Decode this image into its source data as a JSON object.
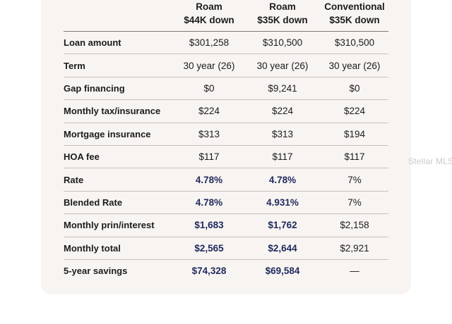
{
  "watermark": "Stellar MLS",
  "columns": [
    {
      "line1": "",
      "line2": ""
    },
    {
      "line1": "Roam",
      "line2": "$44K down"
    },
    {
      "line1": "Roam",
      "line2": "$35K down"
    },
    {
      "line1": "Conventional",
      "line2": "$35K down"
    }
  ],
  "rows": [
    {
      "label": "Loan amount",
      "values": [
        "$301,258",
        "$310,500",
        "$310,500"
      ],
      "highlight": [
        false,
        false,
        false
      ]
    },
    {
      "label": "Term",
      "values": [
        "30 year (26)",
        "30 year (26)",
        "30 year (26)"
      ],
      "highlight": [
        false,
        false,
        false
      ]
    },
    {
      "label": "Gap financing",
      "values": [
        "$0",
        "$9,241",
        "$0"
      ],
      "highlight": [
        false,
        false,
        false
      ]
    },
    {
      "label": "Monthly tax/insurance",
      "values": [
        "$224",
        "$224",
        "$224"
      ],
      "highlight": [
        false,
        false,
        false
      ]
    },
    {
      "label": "Mortgage insurance",
      "values": [
        "$313",
        "$313",
        "$194"
      ],
      "highlight": [
        false,
        false,
        false
      ]
    },
    {
      "label": "HOA fee",
      "values": [
        "$117",
        "$117",
        "$117"
      ],
      "highlight": [
        false,
        false,
        false
      ]
    },
    {
      "label": "Rate",
      "values": [
        "4.78%",
        "4.78%",
        "7%"
      ],
      "highlight": [
        true,
        true,
        false
      ]
    },
    {
      "label": "Blended Rate",
      "values": [
        "4.78%",
        "4.931%",
        "7%"
      ],
      "highlight": [
        true,
        true,
        false
      ]
    },
    {
      "label": "Monthly prin/interest",
      "values": [
        "$1,683",
        "$1,762",
        "$2,158"
      ],
      "highlight": [
        true,
        true,
        false
      ]
    },
    {
      "label": "Monthly total",
      "values": [
        "$2,565",
        "$2,644",
        "$2,921"
      ],
      "highlight": [
        true,
        true,
        false
      ]
    },
    {
      "label": "5-year savings",
      "values": [
        "$74,328",
        "$69,584",
        "—"
      ],
      "highlight": [
        true,
        true,
        false
      ]
    }
  ],
  "colors": {
    "card_background": "#f8f4f2",
    "highlight_text": "#1f2a5c",
    "body_text": "#1c1c1c"
  }
}
